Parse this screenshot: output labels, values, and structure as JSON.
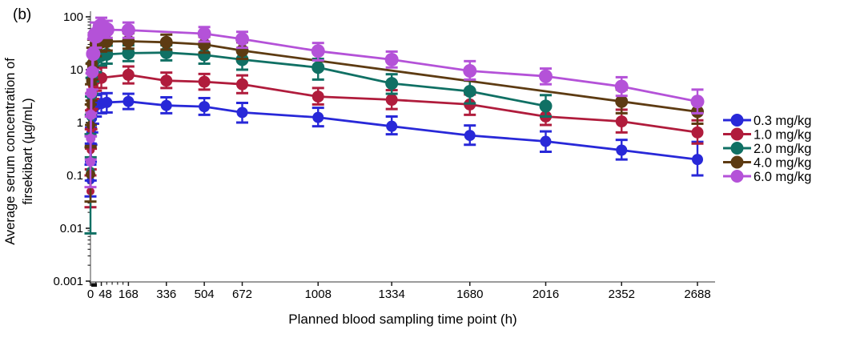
{
  "panel_label": "(b)",
  "chart_data": {
    "type": "line",
    "title": "",
    "xlabel": "Planned blood sampling time point (h)",
    "ylabel": "Average serum concentration of firsekibart (µg/mL)",
    "ylabel_line1": "Average serum concentration of",
    "ylabel_line2": "firsekibart (µg/mL)",
    "x_scale": "linear",
    "y_scale": "log",
    "xlim": [
      0,
      2766
    ],
    "ylim": [
      0.001,
      100
    ],
    "x_ticks": [
      0,
      48,
      168,
      336,
      504,
      672,
      1008,
      1334,
      1680,
      2016,
      2352,
      2688
    ],
    "x_minor_ticks": [
      24,
      72,
      96,
      120,
      144
    ],
    "y_ticks": [
      100,
      10,
      1,
      0.1,
      0.01,
      0.001
    ],
    "y_tick_labels": [
      "100",
      "10",
      "1",
      "0.1",
      "0.01",
      "0.001"
    ],
    "grid": false,
    "legend_position": "right",
    "axis_color": "#7a7a7a",
    "tick_color": "#1a1a1a",
    "series": [
      {
        "name": "0.3 mg/kg",
        "color": "#2828d8",
        "marker": "circle",
        "marker_r": 7,
        "points": [
          {
            "t": 0,
            "v": 0.08,
            "lo": 0.04,
            "hi": 0.16,
            "r": 5
          },
          {
            "t": 1,
            "v": 0.18,
            "lo": 0.08,
            "hi": 0.4,
            "r": 5
          },
          {
            "t": 2,
            "v": 0.38,
            "lo": 0.18,
            "hi": 0.8,
            "r": 5.5
          },
          {
            "t": 4,
            "v": 0.75,
            "lo": 0.38,
            "hi": 1.5,
            "r": 6
          },
          {
            "t": 8,
            "v": 1.2,
            "lo": 0.65,
            "hi": 2.2,
            "r": 6
          },
          {
            "t": 12,
            "v": 1.6,
            "lo": 0.95,
            "hi": 2.7,
            "r": 6.5
          },
          {
            "t": 24,
            "v": 2.1,
            "lo": 1.3,
            "hi": 3.3,
            "r": 7
          },
          {
            "t": 48,
            "v": 2.3,
            "lo": 1.5,
            "hi": 3.5
          },
          {
            "t": 72,
            "v": 2.4,
            "lo": 1.55,
            "hi": 3.6
          },
          {
            "t": 168,
            "v": 2.5,
            "lo": 1.8,
            "hi": 3.5
          },
          {
            "t": 336,
            "v": 2.1,
            "lo": 1.5,
            "hi": 3.0
          },
          {
            "t": 504,
            "v": 2.0,
            "lo": 1.4,
            "hi": 2.9
          },
          {
            "t": 672,
            "v": 1.55,
            "lo": 1.0,
            "hi": 2.35
          },
          {
            "t": 1008,
            "v": 1.25,
            "lo": 0.85,
            "hi": 1.9
          },
          {
            "t": 1334,
            "v": 0.85,
            "lo": 0.6,
            "hi": 1.3
          },
          {
            "t": 1680,
            "v": 0.57,
            "lo": 0.38,
            "hi": 0.88
          },
          {
            "t": 2016,
            "v": 0.44,
            "lo": 0.28,
            "hi": 0.68
          },
          {
            "t": 2352,
            "v": 0.3,
            "lo": 0.2,
            "hi": 0.47
          },
          {
            "t": 2688,
            "v": 0.2,
            "lo": 0.1,
            "hi": 0.43
          }
        ]
      },
      {
        "name": "1.0 mg/kg",
        "color": "#b01c3c",
        "marker": "circle",
        "marker_r": 7.5,
        "points": [
          {
            "t": 0,
            "v": 0.05,
            "lo": 0.025,
            "hi": 0.1,
            "r": 5
          },
          {
            "t": 1,
            "v": 0.3,
            "lo": 0.13,
            "hi": 0.75,
            "r": 5
          },
          {
            "t": 2,
            "v": 0.75,
            "lo": 0.32,
            "hi": 1.7,
            "r": 5.5
          },
          {
            "t": 4,
            "v": 1.7,
            "lo": 0.75,
            "hi": 3.6,
            "r": 6
          },
          {
            "t": 8,
            "v": 3.5,
            "lo": 1.8,
            "hi": 6.6,
            "r": 6
          },
          {
            "t": 12,
            "v": 5,
            "lo": 2.8,
            "hi": 9,
            "r": 6.5
          },
          {
            "t": 24,
            "v": 6.5,
            "lo": 4,
            "hi": 10.5,
            "r": 7
          },
          {
            "t": 48,
            "v": 7,
            "lo": 4.5,
            "hi": 11
          },
          {
            "t": 168,
            "v": 8,
            "lo": 5.5,
            "hi": 11.5
          },
          {
            "t": 336,
            "v": 6.2,
            "lo": 4.5,
            "hi": 8.8
          },
          {
            "t": 504,
            "v": 5.9,
            "lo": 4.2,
            "hi": 8.3
          },
          {
            "t": 672,
            "v": 5.3,
            "lo": 3.6,
            "hi": 7.8
          },
          {
            "t": 1008,
            "v": 3.1,
            "lo": 2.2,
            "hi": 4.5
          },
          {
            "t": 1334,
            "v": 2.7,
            "lo": 1.8,
            "hi": 4.1
          },
          {
            "t": 1680,
            "v": 2.2,
            "lo": 1.4,
            "hi": 3.4
          },
          {
            "t": 2016,
            "v": 1.3,
            "lo": 0.9,
            "hi": 2.0
          },
          {
            "t": 2352,
            "v": 1.05,
            "lo": 0.65,
            "hi": 1.75
          },
          {
            "t": 2688,
            "v": 0.65,
            "lo": 0.4,
            "hi": 1.1
          }
        ]
      },
      {
        "name": "2.0 mg/kg",
        "color": "#107064",
        "marker": "circle",
        "marker_r": 8,
        "points": [
          {
            "t": 0,
            "v": 0.12,
            "lo": 0.008,
            "hi": 0.6,
            "r": 5.5
          },
          {
            "t": 1,
            "v": 0.55,
            "lo": 0.22,
            "hi": 1.4,
            "r": 5.5
          },
          {
            "t": 2,
            "v": 1.3,
            "lo": 0.55,
            "hi": 3.1,
            "r": 6
          },
          {
            "t": 4,
            "v": 3.2,
            "lo": 1.5,
            "hi": 7,
            "r": 6.5
          },
          {
            "t": 8,
            "v": 7,
            "lo": 3.5,
            "hi": 13.5,
            "r": 7
          },
          {
            "t": 12,
            "v": 11,
            "lo": 6,
            "hi": 20,
            "r": 7
          },
          {
            "t": 24,
            "v": 16,
            "lo": 9,
            "hi": 27,
            "r": 7.5
          },
          {
            "t": 48,
            "v": 18.5,
            "lo": 12,
            "hi": 27.5
          },
          {
            "t": 72,
            "v": 19.5,
            "lo": 13,
            "hi": 28.5
          },
          {
            "t": 168,
            "v": 20.5,
            "lo": 14.5,
            "hi": 29
          },
          {
            "t": 336,
            "v": 21,
            "lo": 15,
            "hi": 29
          },
          {
            "t": 504,
            "v": 19,
            "lo": 13,
            "hi": 27
          },
          {
            "t": 672,
            "v": 15.5,
            "lo": 10,
            "hi": 22.5
          },
          {
            "t": 1008,
            "v": 11,
            "lo": 6.5,
            "hi": 16
          },
          {
            "t": 1334,
            "v": 5.5,
            "lo": 3.5,
            "hi": 8.2
          },
          {
            "t": 1680,
            "v": 3.9,
            "lo": 2.3,
            "hi": 6.2
          },
          {
            "t": 2016,
            "v": 2.05,
            "lo": 1.3,
            "hi": 3.3
          }
        ]
      },
      {
        "name": "4.0 mg/kg",
        "color": "#5d3b12",
        "marker": "circle",
        "marker_r": 8,
        "points": [
          {
            "t": 0,
            "v": 0.105,
            "lo": 0.032,
            "hi": 0.34,
            "r": 6
          },
          {
            "t": 1,
            "v": 0.9,
            "lo": 0.36,
            "hi": 2.2,
            "r": 5.5
          },
          {
            "t": 2,
            "v": 2.2,
            "lo": 0.9,
            "hi": 5.3,
            "r": 6
          },
          {
            "t": 4,
            "v": 6,
            "lo": 2.6,
            "hi": 13,
            "r": 6.5
          },
          {
            "t": 8,
            "v": 13,
            "lo": 6.5,
            "hi": 26,
            "r": 7
          },
          {
            "t": 12,
            "v": 21,
            "lo": 11,
            "hi": 37,
            "r": 7.5
          },
          {
            "t": 24,
            "v": 30,
            "lo": 18,
            "hi": 50,
            "r": 8
          },
          {
            "t": 48,
            "v": 33,
            "lo": 22,
            "hi": 50
          },
          {
            "t": 72,
            "v": 34,
            "lo": 23,
            "hi": 51
          },
          {
            "t": 168,
            "v": 34.5,
            "lo": 25,
            "hi": 49
          },
          {
            "t": 336,
            "v": 33,
            "lo": 24,
            "hi": 46
          },
          {
            "t": 504,
            "v": 30,
            "lo": 21,
            "hi": 42
          },
          {
            "t": 672,
            "v": 23,
            "lo": 16,
            "hi": 33
          },
          {
            "t": 2352,
            "v": 2.5,
            "lo": 1.5,
            "hi": 4.2
          },
          {
            "t": 2688,
            "v": 1.6,
            "lo": 0.95,
            "hi": 2.6
          }
        ]
      },
      {
        "name": "6.0 mg/kg",
        "color": "#b452d8",
        "marker": "circle",
        "marker_r": 8.5,
        "points": [
          {
            "t": 0,
            "v": 0.18,
            "lo": 0.06,
            "hi": 0.55,
            "r": 6
          },
          {
            "t": 1,
            "v": 0.5,
            "lo": 0.2,
            "hi": 1.3,
            "r": 6
          },
          {
            "t": 2,
            "v": 1.4,
            "lo": 0.55,
            "hi": 3.5,
            "r": 6.5
          },
          {
            "t": 4,
            "v": 3.6,
            "lo": 1.5,
            "hi": 8.5,
            "r": 7
          },
          {
            "t": 8,
            "v": 9,
            "lo": 4.2,
            "hi": 19,
            "r": 8
          },
          {
            "t": 12,
            "v": 20,
            "lo": 10,
            "hi": 38,
            "r": 9
          },
          {
            "t": 24,
            "v": 45,
            "lo": 26,
            "hi": 78,
            "r": 10.5
          },
          {
            "t": 48,
            "v": 64,
            "lo": 44,
            "hi": 96,
            "r": 11
          },
          {
            "t": 72,
            "v": 57,
            "lo": 40,
            "hi": 84,
            "r": 9.5
          },
          {
            "t": 168,
            "v": 56,
            "lo": 40,
            "hi": 78
          },
          {
            "t": 504,
            "v": 48,
            "lo": 34,
            "hi": 64
          },
          {
            "t": 672,
            "v": 38,
            "lo": 26,
            "hi": 52
          },
          {
            "t": 1008,
            "v": 22.5,
            "lo": 15,
            "hi": 32
          },
          {
            "t": 1334,
            "v": 15.5,
            "lo": 11,
            "hi": 22
          },
          {
            "t": 1680,
            "v": 9.5,
            "lo": 6.5,
            "hi": 14.5
          },
          {
            "t": 2016,
            "v": 7.5,
            "lo": 5.3,
            "hi": 10.5
          },
          {
            "t": 2352,
            "v": 4.8,
            "lo": 3.2,
            "hi": 7.2
          },
          {
            "t": 2688,
            "v": 2.5,
            "lo": 1.5,
            "hi": 4.2
          }
        ]
      }
    ]
  }
}
